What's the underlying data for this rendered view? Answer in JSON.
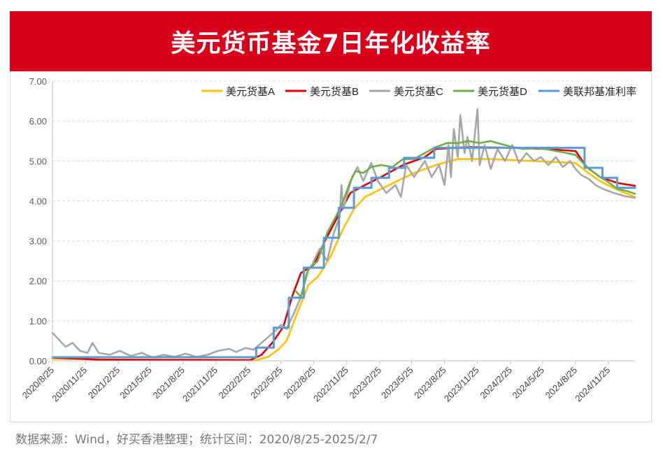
{
  "title": "美元货币基金7日年化收益率",
  "source_note": "数据来源：Wind，好买香港整理；统计区间：2020/8/25-2025/2/7",
  "chart_data": {
    "type": "line",
    "title": "美元货币基金7日年化收益率",
    "xlabel": "",
    "ylabel": "",
    "x_tick_labels": [
      "2020/8/25",
      "2020/11/25",
      "2021/2/25",
      "2021/5/25",
      "2021/8/25",
      "2021/11/25",
      "2022/2/25",
      "2022/5/25",
      "2022/8/25",
      "2022/11/25",
      "2023/2/25",
      "2023/5/25",
      "2023/8/25",
      "2023/11/25",
      "2024/2/25",
      "2024/5/25",
      "2024/8/25",
      "2024/11/25"
    ],
    "y_tick_labels": [
      "0.00",
      "1.00",
      "2.00",
      "3.00",
      "4.00",
      "5.00",
      "6.00",
      "7.00"
    ],
    "ylim": [
      0,
      7
    ],
    "xlim": [
      "2020/8/25",
      "2025/2/7"
    ],
    "grid": "horizontal-dashed",
    "legend_position": "top-right",
    "series": [
      {
        "name": "美元货基A",
        "color": "#ffc000",
        "points": [
          [
            "2020/8/25",
            0.05
          ],
          [
            "2021/6/1",
            0.02
          ],
          [
            "2022/3/15",
            0.01
          ],
          [
            "2022/4/20",
            0.1
          ],
          [
            "2022/5/20",
            0.3
          ],
          [
            "2022/6/10",
            0.5
          ],
          [
            "2022/7/10",
            1.2
          ],
          [
            "2022/8/10",
            1.9
          ],
          [
            "2022/9/5",
            2.1
          ],
          [
            "2022/10/10",
            2.6
          ],
          [
            "2022/11/15",
            3.3
          ],
          [
            "2022/12/15",
            3.8
          ],
          [
            "2023/1/15",
            4.1
          ],
          [
            "2023/3/1",
            4.3
          ],
          [
            "2023/4/15",
            4.5
          ],
          [
            "2023/6/1",
            4.7
          ],
          [
            "2023/8/1",
            4.9
          ],
          [
            "2023/10/1",
            5.05
          ],
          [
            "2024/1/1",
            5.05
          ],
          [
            "2024/5/1",
            5.0
          ],
          [
            "2024/8/25",
            4.95
          ],
          [
            "2024/9/30",
            4.7
          ],
          [
            "2024/11/1",
            4.5
          ],
          [
            "2024/12/15",
            4.3
          ],
          [
            "2025/2/7",
            4.1
          ]
        ]
      },
      {
        "name": "美元货基B",
        "color": "#e00000",
        "points": [
          [
            "2020/8/25",
            0.08
          ],
          [
            "2021/1/1",
            0.03
          ],
          [
            "2022/3/1",
            0.02
          ],
          [
            "2022/4/1",
            0.15
          ],
          [
            "2022/5/1",
            0.45
          ],
          [
            "2022/6/1",
            0.85
          ],
          [
            "2022/6/25",
            1.6
          ],
          [
            "2022/7/20",
            2.2
          ],
          [
            "2022/8/25",
            2.4
          ],
          [
            "2022/9/25",
            3.0
          ],
          [
            "2022/11/5",
            3.7
          ],
          [
            "2022/12/5",
            4.2
          ],
          [
            "2023/1/15",
            4.4
          ],
          [
            "2023/3/1",
            4.6
          ],
          [
            "2023/5/1",
            4.9
          ],
          [
            "2023/7/1",
            5.1
          ],
          [
            "2023/8/1",
            5.3
          ],
          [
            "2023/11/1",
            5.35
          ],
          [
            "2024/3/1",
            5.33
          ],
          [
            "2024/6/1",
            5.3
          ],
          [
            "2024/8/25",
            5.25
          ],
          [
            "2024/9/25",
            4.85
          ],
          [
            "2024/11/1",
            4.6
          ],
          [
            "2024/12/20",
            4.45
          ],
          [
            "2025/2/7",
            4.38
          ]
        ]
      },
      {
        "name": "美元货基C",
        "color": "#a6a6a6",
        "points": [
          [
            "2020/8/25",
            0.7
          ],
          [
            "2020/9/10",
            0.55
          ],
          [
            "2020/10/1",
            0.35
          ],
          [
            "2020/10/20",
            0.45
          ],
          [
            "2020/11/10",
            0.25
          ],
          [
            "2020/12/1",
            0.2
          ],
          [
            "2020/12/15",
            0.45
          ],
          [
            "2021/1/1",
            0.2
          ],
          [
            "2021/2/1",
            0.15
          ],
          [
            "2021/3/1",
            0.25
          ],
          [
            "2021/4/1",
            0.12
          ],
          [
            "2021/5/1",
            0.2
          ],
          [
            "2021/6/1",
            0.08
          ],
          [
            "2021/7/1",
            0.15
          ],
          [
            "2021/8/1",
            0.1
          ],
          [
            "2021/9/1",
            0.18
          ],
          [
            "2021/10/1",
            0.1
          ],
          [
            "2021/11/1",
            0.15
          ],
          [
            "2021/12/1",
            0.25
          ],
          [
            "2022/1/1",
            0.3
          ],
          [
            "2022/1/20",
            0.22
          ],
          [
            "2022/2/15",
            0.32
          ],
          [
            "2022/3/10",
            0.28
          ],
          [
            "2022/4/1",
            0.45
          ],
          [
            "2022/4/20",
            0.6
          ],
          [
            "2022/5/10",
            0.75
          ],
          [
            "2022/5/25",
            0.9
          ],
          [
            "2022/6/10",
            0.8
          ],
          [
            "2022/7/1",
            1.2
          ],
          [
            "2022/7/20",
            1.6
          ],
          [
            "2022/8/5",
            2.2
          ],
          [
            "2022/8/20",
            2.4
          ],
          [
            "2022/9/10",
            2.8
          ],
          [
            "2022/10/1",
            2.5
          ],
          [
            "2022/10/20",
            3.2
          ],
          [
            "2022/11/5",
            3.6
          ],
          [
            "2022/11/10",
            4.4
          ],
          [
            "2022/11/15",
            3.8
          ],
          [
            "2022/12/10",
            4.6
          ],
          [
            "2022/12/25",
            4.85
          ],
          [
            "2023/1/10",
            4.5
          ],
          [
            "2023/2/1",
            4.95
          ],
          [
            "2023/2/20",
            4.5
          ],
          [
            "2023/3/15",
            4.2
          ],
          [
            "2023/4/10",
            4.4
          ],
          [
            "2023/4/25",
            4.1
          ],
          [
            "2023/5/10",
            4.9
          ],
          [
            "2023/6/1",
            4.6
          ],
          [
            "2023/7/1",
            5.0
          ],
          [
            "2023/7/20",
            4.6
          ],
          [
            "2023/8/10",
            4.9
          ],
          [
            "2023/8/25",
            4.4
          ],
          [
            "2023/9/5",
            5.4
          ],
          [
            "2023/9/12",
            4.6
          ],
          [
            "2023/9/20",
            5.8
          ],
          [
            "2023/10/1",
            5.1
          ],
          [
            "2023/10/8",
            6.15
          ],
          [
            "2023/10/20",
            5.2
          ],
          [
            "2023/10/28",
            5.6
          ],
          [
            "2023/11/10",
            5.0
          ],
          [
            "2023/11/25",
            6.3
          ],
          [
            "2023/12/1",
            4.9
          ],
          [
            "2023/12/15",
            5.4
          ],
          [
            "2024/1/1",
            4.8
          ],
          [
            "2024/1/20",
            5.3
          ],
          [
            "2024/2/10",
            5.0
          ],
          [
            "2024/3/1",
            5.4
          ],
          [
            "2024/3/20",
            4.95
          ],
          [
            "2024/4/10",
            5.2
          ],
          [
            "2024/5/1",
            5.0
          ],
          [
            "2024/5/20",
            5.1
          ],
          [
            "2024/6/10",
            4.9
          ],
          [
            "2024/7/1",
            5.1
          ],
          [
            "2024/7/20",
            4.85
          ],
          [
            "2024/8/10",
            5.0
          ],
          [
            "2024/8/25",
            4.8
          ],
          [
            "2024/9/10",
            4.65
          ],
          [
            "2024/10/1",
            4.55
          ],
          [
            "2024/10/20",
            4.4
          ],
          [
            "2024/11/10",
            4.3
          ],
          [
            "2024/12/10",
            4.2
          ],
          [
            "2025/1/10",
            4.12
          ],
          [
            "2025/2/7",
            4.08
          ]
        ]
      },
      {
        "name": "美元货基D",
        "color": "#70ad47",
        "points": [
          [
            "2022/7/5",
            1.75
          ],
          [
            "2022/7/20",
            1.6
          ],
          [
            "2022/8/10",
            2.3
          ],
          [
            "2022/9/5",
            2.5
          ],
          [
            "2022/10/1",
            3.2
          ],
          [
            "2022/10/25",
            3.6
          ],
          [
            "2022/11/15",
            4.0
          ],
          [
            "2022/12/5",
            4.5
          ],
          [
            "2022/12/20",
            4.75
          ],
          [
            "2023/1/10",
            4.7
          ],
          [
            "2023/2/1",
            4.85
          ],
          [
            "2023/3/1",
            4.9
          ],
          [
            "2023/4/1",
            4.85
          ],
          [
            "2023/5/1",
            5.05
          ],
          [
            "2023/6/1",
            5.05
          ],
          [
            "2023/7/1",
            5.2
          ],
          [
            "2023/8/1",
            5.35
          ],
          [
            "2023/9/1",
            5.45
          ],
          [
            "2023/10/1",
            5.45
          ],
          [
            "2023/11/1",
            5.5
          ],
          [
            "2023/12/1",
            5.45
          ],
          [
            "2024/1/1",
            5.5
          ],
          [
            "2024/2/1",
            5.42
          ],
          [
            "2024/3/1",
            5.35
          ],
          [
            "2024/4/1",
            5.3
          ],
          [
            "2024/5/1",
            5.32
          ],
          [
            "2024/6/1",
            5.3
          ],
          [
            "2024/7/1",
            5.25
          ],
          [
            "2024/8/1",
            5.2
          ],
          [
            "2024/8/25",
            5.15
          ],
          [
            "2024/9/20",
            4.9
          ],
          [
            "2024/10/10",
            4.75
          ],
          [
            "2024/11/1",
            4.6
          ],
          [
            "2024/11/20",
            4.5
          ],
          [
            "2024/12/20",
            4.3
          ],
          [
            "2025/1/15",
            4.25
          ],
          [
            "2025/2/7",
            4.18
          ]
        ]
      },
      {
        "name": "美联邦基准利率",
        "color": "#5b9bd5",
        "step": true,
        "points": [
          [
            "2020/8/25",
            0.09
          ],
          [
            "2022/3/17",
            0.33
          ],
          [
            "2022/5/5",
            0.83
          ],
          [
            "2022/6/16",
            1.58
          ],
          [
            "2022/7/28",
            2.33
          ],
          [
            "2022/9/22",
            3.08
          ],
          [
            "2022/11/3",
            3.83
          ],
          [
            "2022/12/15",
            4.33
          ],
          [
            "2023/2/2",
            4.58
          ],
          [
            "2023/3/23",
            4.83
          ],
          [
            "2023/5/4",
            5.08
          ],
          [
            "2023/7/27",
            5.33
          ],
          [
            "2024/9/19",
            4.83
          ],
          [
            "2024/11/8",
            4.58
          ],
          [
            "2024/12/19",
            4.33
          ],
          [
            "2025/2/7",
            4.33
          ]
        ]
      }
    ]
  }
}
